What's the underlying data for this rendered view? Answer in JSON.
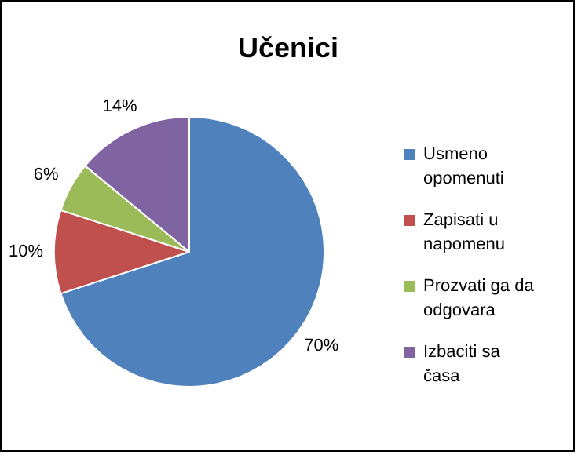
{
  "chart_data": {
    "type": "pie",
    "title": "Učenici",
    "categories": [
      "Usmeno opomenuti",
      "Zapisati u napomenu",
      "Prozvati ga da odgovara",
      "Izbaciti sa časa"
    ],
    "values": [
      70,
      10,
      6,
      14
    ],
    "colors": [
      "#4f81bd",
      "#c0504d",
      "#9bbb59",
      "#8064a2"
    ],
    "value_labels": [
      "70%",
      "10%",
      "6%",
      "14%"
    ],
    "legend": "right"
  }
}
